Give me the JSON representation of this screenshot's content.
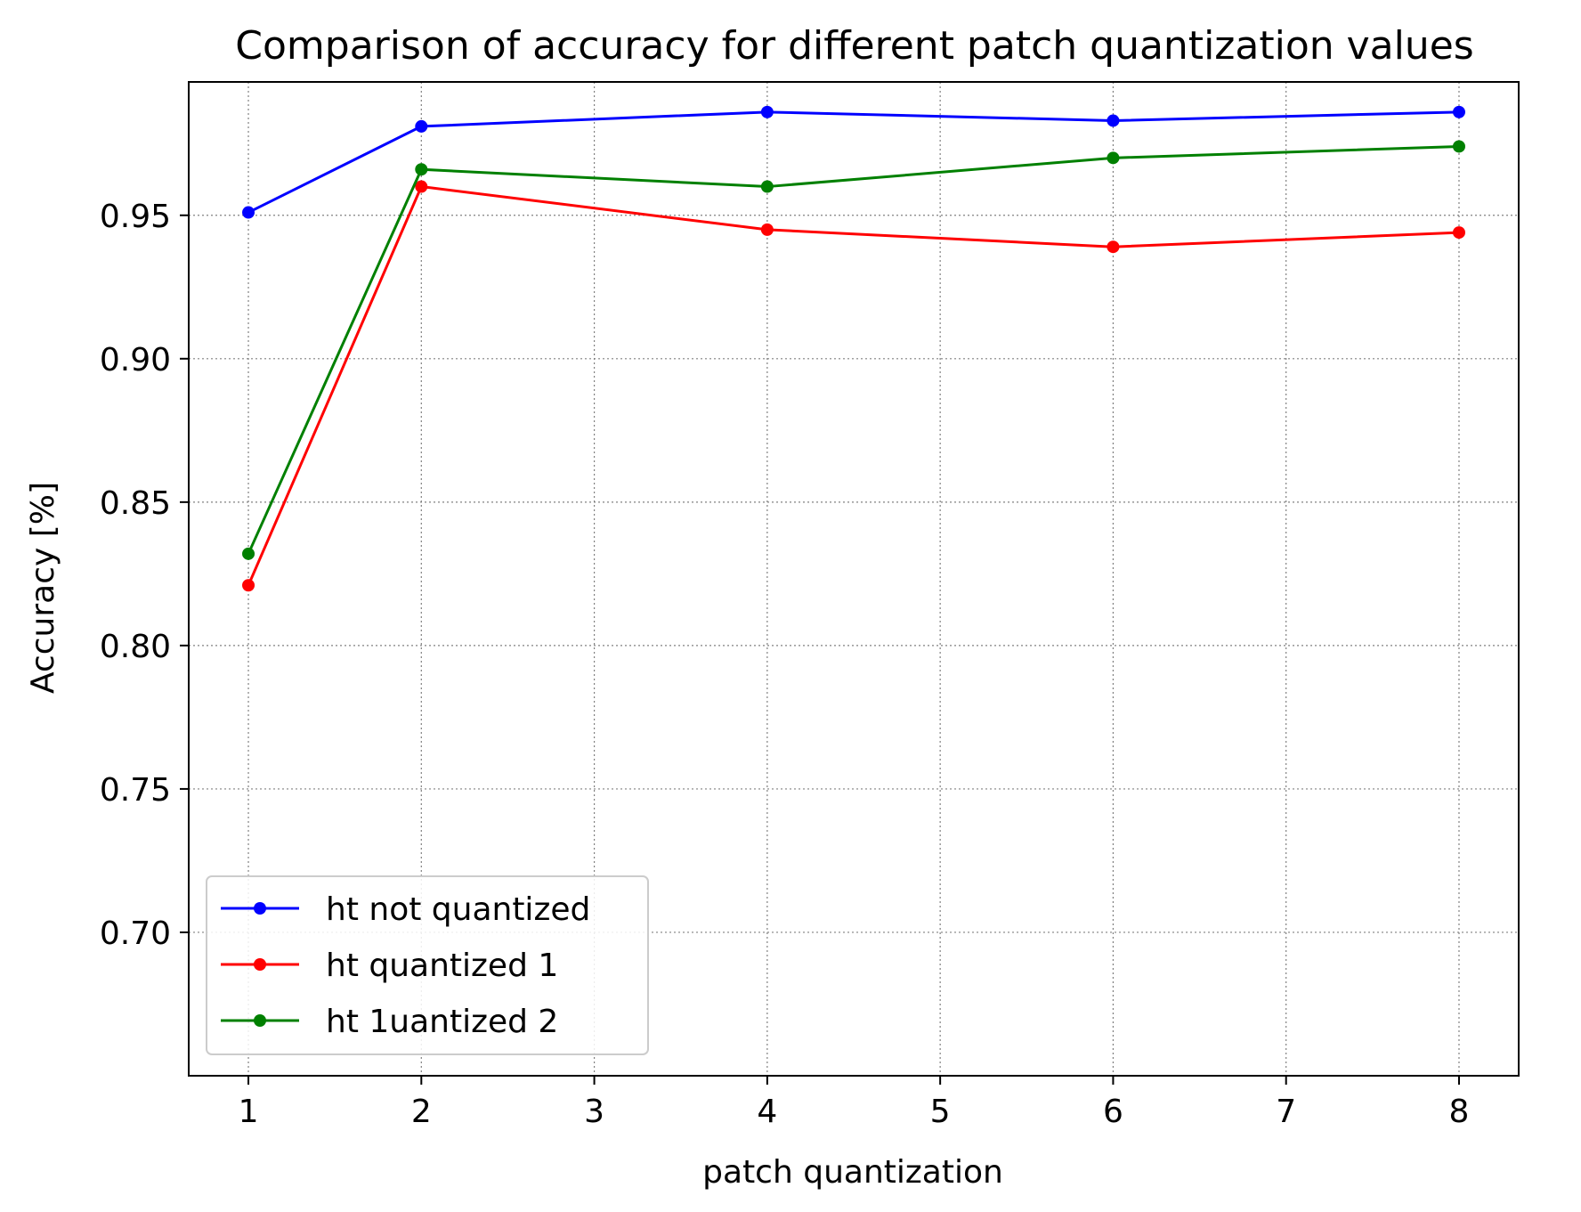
{
  "chart_data": {
    "type": "line",
    "title": "Comparison of accuracy for different patch quantization values",
    "xlabel": "patch quantization",
    "ylabel": "Accuracy [%]",
    "x": [
      1,
      2,
      4,
      6,
      8
    ],
    "xlim": [
      0.655,
      8.345
    ],
    "ylim": [
      0.65,
      0.9965
    ],
    "xticks": [
      1,
      2,
      3,
      4,
      5,
      6,
      7,
      8
    ],
    "yticks": [
      0.7,
      0.75,
      0.8,
      0.85,
      0.9,
      0.95
    ],
    "ytick_labels": [
      "0.70",
      "0.75",
      "0.80",
      "0.85",
      "0.90",
      "0.95"
    ],
    "grid": true,
    "legend_position": "lower-left",
    "series": [
      {
        "name": "ht not quantized",
        "color": "#0000ff",
        "values": [
          0.951,
          0.981,
          0.986,
          0.983,
          0.986
        ]
      },
      {
        "name": "ht quantized 1",
        "color": "#ff0000",
        "values": [
          0.821,
          0.96,
          0.945,
          0.939,
          0.944
        ]
      },
      {
        "name": "ht 1uantized 2",
        "color": "#008000",
        "values": [
          0.832,
          0.966,
          0.96,
          0.97,
          0.974
        ]
      }
    ]
  }
}
